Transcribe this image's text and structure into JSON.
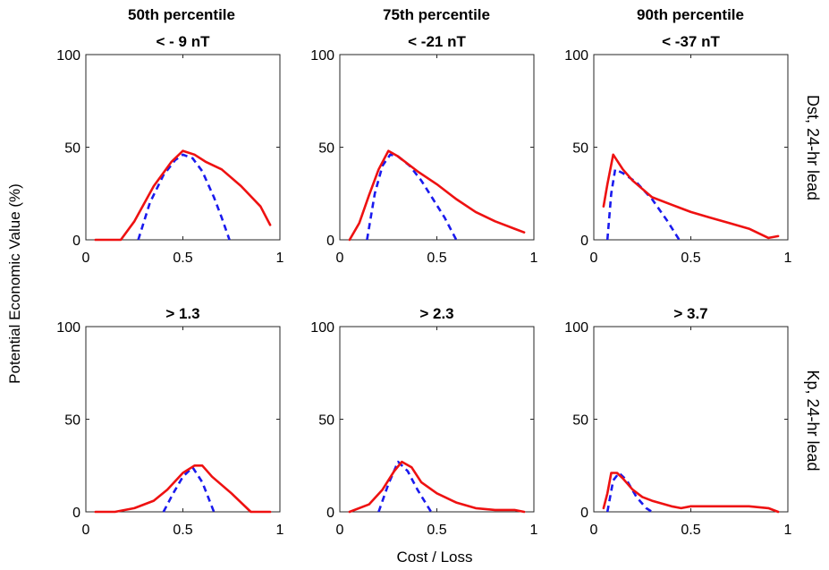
{
  "figure": {
    "column_headers": [
      "50th percentile",
      "75th percentile",
      "90th percentile"
    ],
    "row_labels": [
      "Dst, 24-hr lead",
      "Kp, 24-hr lead"
    ],
    "ylabel": "Potential Economic Value (%)",
    "xlabel": "Cost / Loss",
    "colors": {
      "solid_line": "#ee1111",
      "dashed_line": "#1a1aee"
    }
  },
  "chart_data": [
    {
      "type": "line",
      "title": "< - 9 nT",
      "xlim": [
        0,
        1
      ],
      "ylim": [
        0,
        100
      ],
      "xticks": [
        "0",
        "0.5",
        "1"
      ],
      "yticks": [
        "0",
        "50",
        "100"
      ],
      "series": [
        {
          "style": "solid",
          "x": [
            0.05,
            0.18,
            0.25,
            0.35,
            0.44,
            0.5,
            0.56,
            0.62,
            0.7,
            0.8,
            0.9,
            0.95
          ],
          "y": [
            0,
            0,
            10,
            29,
            42,
            48,
            46,
            42,
            38,
            29,
            18,
            8
          ]
        },
        {
          "style": "dashed",
          "x": [
            0.27,
            0.33,
            0.4,
            0.46,
            0.5,
            0.55,
            0.6,
            0.66,
            0.7,
            0.74
          ],
          "y": [
            0,
            20,
            35,
            43,
            46,
            44,
            37,
            23,
            12,
            0
          ]
        }
      ]
    },
    {
      "type": "line",
      "title": "< -21 nT",
      "xlim": [
        0,
        1
      ],
      "ylim": [
        0,
        100
      ],
      "xticks": [
        "0",
        "0.5",
        "1"
      ],
      "yticks": [
        "0",
        "50",
        "100"
      ],
      "series": [
        {
          "style": "solid",
          "x": [
            0.05,
            0.1,
            0.15,
            0.2,
            0.25,
            0.3,
            0.4,
            0.5,
            0.6,
            0.7,
            0.8,
            0.9,
            0.95
          ],
          "y": [
            0,
            9,
            24,
            38,
            48,
            45,
            37,
            30,
            22,
            15,
            10,
            6,
            4
          ]
        },
        {
          "style": "dashed",
          "x": [
            0.14,
            0.18,
            0.22,
            0.26,
            0.3,
            0.36,
            0.42,
            0.48,
            0.54,
            0.6
          ],
          "y": [
            0,
            25,
            40,
            46,
            45,
            40,
            32,
            22,
            12,
            0
          ]
        }
      ]
    },
    {
      "type": "line",
      "title": "< -37 nT",
      "xlim": [
        0,
        1
      ],
      "ylim": [
        0,
        100
      ],
      "xticks": [
        "0",
        "0.5",
        "1"
      ],
      "yticks": [
        "0",
        "50",
        "100"
      ],
      "series": [
        {
          "style": "solid",
          "x": [
            0.05,
            0.07,
            0.1,
            0.15,
            0.2,
            0.3,
            0.4,
            0.5,
            0.6,
            0.7,
            0.8,
            0.9,
            0.95
          ],
          "y": [
            18,
            30,
            46,
            38,
            32,
            23,
            19,
            15,
            12,
            9,
            6,
            1,
            2
          ]
        },
        {
          "style": "dashed",
          "x": [
            0.07,
            0.09,
            0.11,
            0.15,
            0.22,
            0.3,
            0.38,
            0.44
          ],
          "y": [
            0,
            25,
            38,
            36,
            31,
            22,
            10,
            0
          ]
        }
      ]
    },
    {
      "type": "line",
      "title": "> 1.3",
      "xlim": [
        0,
        1
      ],
      "ylim": [
        0,
        100
      ],
      "xticks": [
        "0",
        "0.5",
        "1"
      ],
      "yticks": [
        "0",
        "50",
        "100"
      ],
      "series": [
        {
          "style": "solid",
          "x": [
            0.05,
            0.15,
            0.25,
            0.35,
            0.42,
            0.5,
            0.56,
            0.6,
            0.65,
            0.75,
            0.85,
            0.95
          ],
          "y": [
            0,
            0,
            2,
            6,
            12,
            21,
            25,
            25,
            19,
            10,
            0,
            0
          ]
        },
        {
          "style": "dashed",
          "x": [
            0.4,
            0.45,
            0.5,
            0.55,
            0.6,
            0.66
          ],
          "y": [
            0,
            10,
            19,
            24,
            16,
            0
          ]
        }
      ]
    },
    {
      "type": "line",
      "title": "> 2.3",
      "xlim": [
        0,
        1
      ],
      "ylim": [
        0,
        100
      ],
      "xticks": [
        "0",
        "0.5",
        "1"
      ],
      "yticks": [
        "0",
        "50",
        "100"
      ],
      "series": [
        {
          "style": "solid",
          "x": [
            0.05,
            0.15,
            0.22,
            0.28,
            0.32,
            0.37,
            0.42,
            0.5,
            0.6,
            0.7,
            0.8,
            0.9,
            0.95
          ],
          "y": [
            0,
            4,
            12,
            22,
            27,
            24,
            16,
            10,
            5,
            2,
            1,
            1,
            0
          ]
        },
        {
          "style": "dashed",
          "x": [
            0.2,
            0.25,
            0.3,
            0.35,
            0.4,
            0.47
          ],
          "y": [
            0,
            15,
            27,
            22,
            12,
            0
          ]
        }
      ]
    },
    {
      "type": "line",
      "title": "> 3.7",
      "xlim": [
        0,
        1
      ],
      "ylim": [
        0,
        100
      ],
      "xticks": [
        "0",
        "0.5",
        "1"
      ],
      "yticks": [
        "0",
        "50",
        "100"
      ],
      "series": [
        {
          "style": "solid",
          "x": [
            0.05,
            0.07,
            0.09,
            0.12,
            0.15,
            0.2,
            0.25,
            0.3,
            0.4,
            0.45,
            0.5,
            0.6,
            0.7,
            0.8,
            0.9,
            0.95
          ],
          "y": [
            2,
            10,
            21,
            21,
            18,
            12,
            8,
            6,
            3,
            2,
            3,
            3,
            3,
            3,
            2,
            0
          ]
        },
        {
          "style": "dashed",
          "x": [
            0.07,
            0.1,
            0.13,
            0.17,
            0.22,
            0.27,
            0.3
          ],
          "y": [
            0,
            17,
            21,
            17,
            8,
            2,
            0
          ]
        }
      ]
    }
  ]
}
